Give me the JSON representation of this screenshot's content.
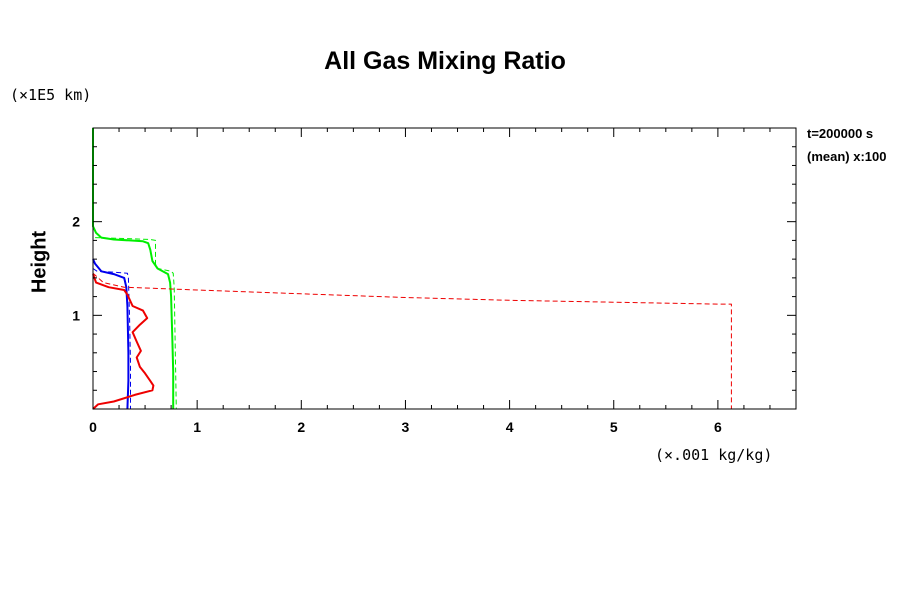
{
  "chart_data": {
    "type": "line",
    "title": "All Gas Mixing Ratio",
    "ylabel": "Height",
    "y_unit": "(×1E5 km)",
    "x_unit": "(×.001 kg/kg)",
    "annotations": [
      "t=200000 s",
      "(mean) x:100"
    ],
    "xlim": [
      0,
      6.75
    ],
    "ylim": [
      0,
      3
    ],
    "x_ticks": [
      0,
      1,
      2,
      3,
      4,
      5,
      6
    ],
    "y_ticks": [
      1,
      2
    ],
    "grid": false,
    "legend": "none",
    "series": [
      {
        "color": "#00ee00",
        "style": "solid",
        "points": [
          [
            0.0,
            3.0
          ],
          [
            0.0,
            2.05
          ],
          [
            0.0,
            1.95
          ],
          [
            0.03,
            1.88
          ],
          [
            0.08,
            1.83
          ],
          [
            0.2,
            1.81
          ],
          [
            0.35,
            1.8
          ],
          [
            0.48,
            1.79
          ],
          [
            0.53,
            1.77
          ],
          [
            0.55,
            1.7
          ],
          [
            0.57,
            1.58
          ],
          [
            0.62,
            1.5
          ],
          [
            0.72,
            1.44
          ],
          [
            0.74,
            1.35
          ],
          [
            0.75,
            1.2
          ],
          [
            0.76,
            0.8
          ],
          [
            0.77,
            0.4
          ],
          [
            0.77,
            0.0
          ]
        ]
      },
      {
        "color": "#00ee00",
        "style": "dashed",
        "points": [
          [
            0.02,
            1.83
          ],
          [
            0.3,
            1.82
          ],
          [
            0.55,
            1.81
          ],
          [
            0.6,
            1.8
          ],
          [
            0.6,
            1.55
          ],
          [
            0.62,
            1.5
          ],
          [
            0.75,
            1.47
          ],
          [
            0.77,
            1.45
          ],
          [
            0.78,
            1.3
          ],
          [
            0.8,
            0.0
          ]
        ]
      },
      {
        "color": "#0000ee",
        "style": "solid",
        "points": [
          [
            0.0,
            1.6
          ],
          [
            0.02,
            1.55
          ],
          [
            0.08,
            1.47
          ],
          [
            0.2,
            1.44
          ],
          [
            0.3,
            1.4
          ],
          [
            0.32,
            1.3
          ],
          [
            0.33,
            1.1
          ],
          [
            0.34,
            0.6
          ],
          [
            0.34,
            0.3
          ],
          [
            0.33,
            0.0
          ]
        ]
      },
      {
        "color": "#0000ee",
        "style": "dashed",
        "points": [
          [
            0.0,
            1.5
          ],
          [
            0.04,
            1.47
          ],
          [
            0.2,
            1.46
          ],
          [
            0.33,
            1.45
          ],
          [
            0.34,
            1.4
          ],
          [
            0.35,
            1.0
          ],
          [
            0.36,
            0.5
          ],
          [
            0.36,
            0.0
          ]
        ]
      },
      {
        "color": "#ee0000",
        "style": "solid",
        "points": [
          [
            0.0,
            1.44
          ],
          [
            0.03,
            1.35
          ],
          [
            0.15,
            1.3
          ],
          [
            0.3,
            1.27
          ],
          [
            0.33,
            1.22
          ],
          [
            0.38,
            1.1
          ],
          [
            0.48,
            1.05
          ],
          [
            0.52,
            0.97
          ],
          [
            0.45,
            0.9
          ],
          [
            0.38,
            0.82
          ],
          [
            0.42,
            0.72
          ],
          [
            0.46,
            0.62
          ],
          [
            0.42,
            0.55
          ],
          [
            0.45,
            0.45
          ],
          [
            0.5,
            0.38
          ],
          [
            0.55,
            0.3
          ],
          [
            0.58,
            0.25
          ],
          [
            0.57,
            0.2
          ],
          [
            0.4,
            0.15
          ],
          [
            0.2,
            0.08
          ],
          [
            0.05,
            0.05
          ],
          [
            0.0,
            0.0
          ]
        ]
      },
      {
        "color": "#ee0000",
        "style": "dashed",
        "points": [
          [
            0.0,
            1.45
          ],
          [
            0.1,
            1.35
          ],
          [
            0.3,
            1.3
          ],
          [
            1.0,
            1.27
          ],
          [
            2.0,
            1.23
          ],
          [
            3.0,
            1.19
          ],
          [
            4.0,
            1.16
          ],
          [
            5.0,
            1.14
          ],
          [
            6.0,
            1.12
          ],
          [
            6.13,
            1.12
          ],
          [
            6.13,
            0.0
          ]
        ]
      }
    ]
  }
}
